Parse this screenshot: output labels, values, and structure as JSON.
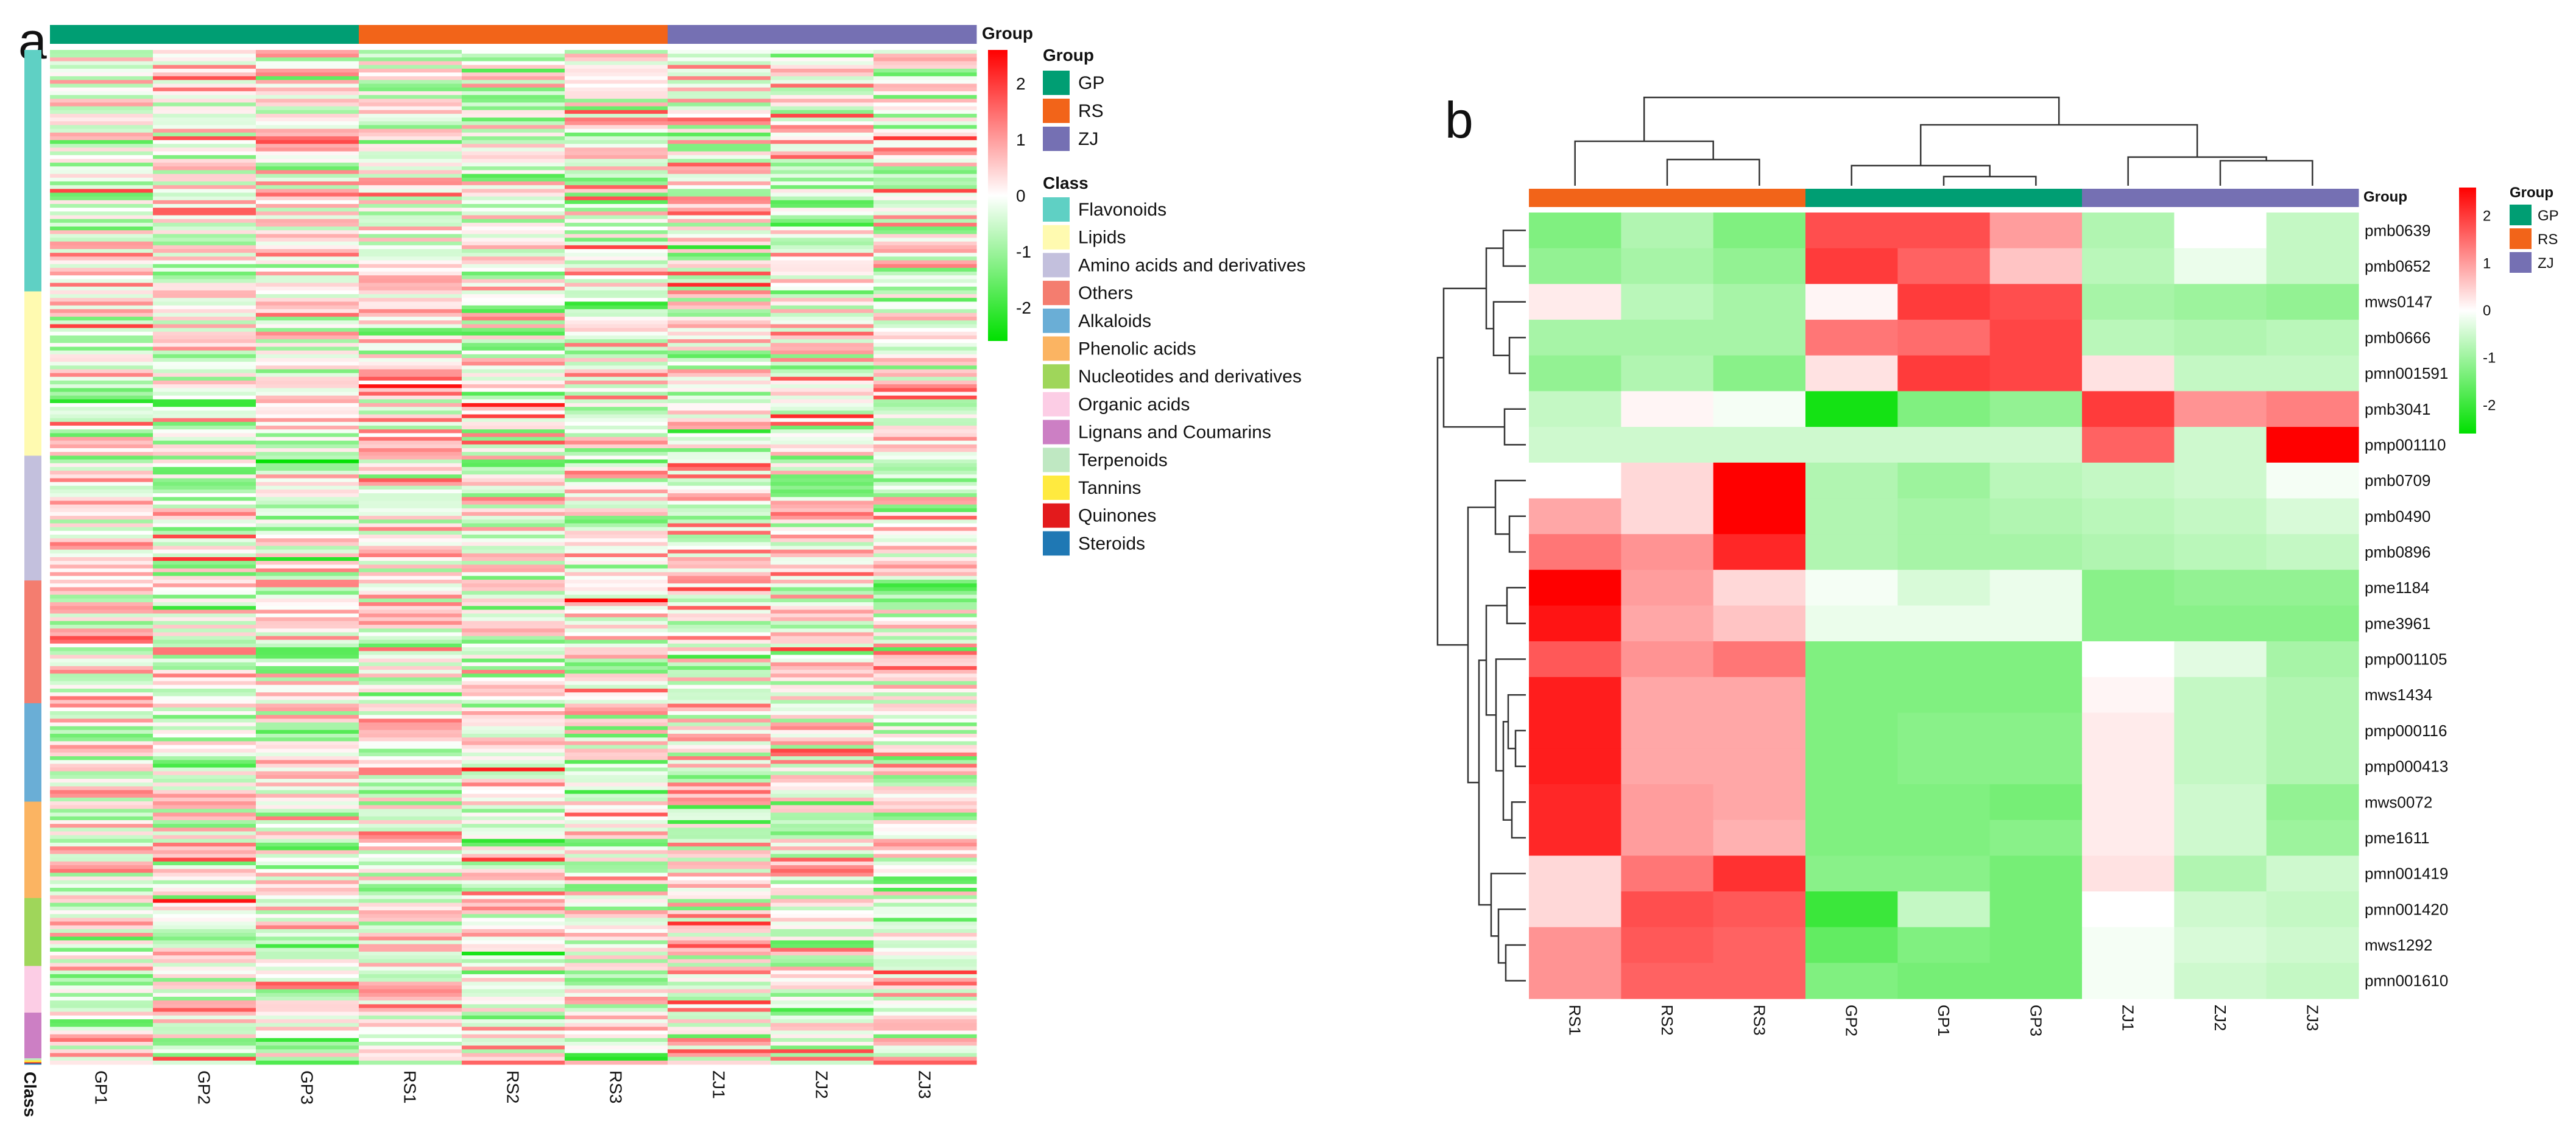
{
  "chart_data": [
    {
      "panel": "a",
      "type": "heatmap",
      "columns": [
        "GP1",
        "GP2",
        "GP3",
        "RS1",
        "RS2",
        "RS3",
        "ZJ1",
        "ZJ2",
        "ZJ3"
      ],
      "column_groups": [
        "GP",
        "GP",
        "GP",
        "RS",
        "RS",
        "RS",
        "ZJ",
        "ZJ",
        "ZJ"
      ],
      "group_legend": {
        "title": "Group",
        "items": [
          {
            "label": "GP",
            "color": "#009e73"
          },
          {
            "label": "RS",
            "color": "#f26419"
          },
          {
            "label": "ZJ",
            "color": "#7570b3"
          }
        ]
      },
      "class_legend": {
        "title": "Class",
        "items": [
          {
            "label": "Flavonoids",
            "color": "#5fd0c4",
            "share": 0.238
          },
          {
            "label": "Lipids",
            "color": "#fffab0",
            "share": 0.162
          },
          {
            "label": "Amino acids and derivatives",
            "color": "#c3c0dd",
            "share": 0.123
          },
          {
            "label": "Others",
            "color": "#f47d6f",
            "share": 0.121
          },
          {
            "label": "Alkaloids",
            "color": "#6aaed6",
            "share": 0.097
          },
          {
            "label": "Phenolic acids",
            "color": "#fbb462",
            "share": 0.095
          },
          {
            "label": "Nucleotides and derivatives",
            "color": "#9fd65a",
            "share": 0.067
          },
          {
            "label": "Organic acids",
            "color": "#fccde5",
            "share": 0.046
          },
          {
            "label": "Lignans and Coumarins",
            "color": "#cc7fc4",
            "share": 0.045
          },
          {
            "label": "Terpenoids",
            "color": "#bfe8c2",
            "share": 0.002
          },
          {
            "label": "Tannins",
            "color": "#ffea3f",
            "share": 0.002
          },
          {
            "label": "Quinones",
            "color": "#e31a1c",
            "share": 0.001
          },
          {
            "label": "Steroids",
            "color": "#1f78b4",
            "share": 0.001
          }
        ]
      },
      "scale": {
        "ticks": [
          2,
          1,
          0,
          -1,
          -2
        ],
        "range": [
          -2.6,
          2.6
        ],
        "colors": [
          "#00e000",
          "#ffffff",
          "#ff0000"
        ]
      },
      "row_axis_label": "Class",
      "group_bar_label": "Group",
      "rows_shown": "approximately 270 metabolites (individual values not legible)"
    },
    {
      "panel": "b",
      "type": "heatmap",
      "columns": [
        "RS1",
        "RS2",
        "RS3",
        "GP2",
        "GP1",
        "GP3",
        "ZJ1",
        "ZJ2",
        "ZJ3"
      ],
      "column_groups": [
        "RS",
        "RS",
        "RS",
        "GP",
        "GP",
        "GP",
        "ZJ",
        "ZJ",
        "ZJ"
      ],
      "rows": [
        "pmb0639",
        "pmb0652",
        "mws0147",
        "pmb0666",
        "pmn001591",
        "pmb3041",
        "pmp001110",
        "pmb0709",
        "pmb0490",
        "pmb0896",
        "pme1184",
        "pme3961",
        "pmp001105",
        "mws1434",
        "pmp000116",
        "pmp000413",
        "mws0072",
        "pme1611",
        "pmn001419",
        "pmn001420",
        "mws1292",
        "pmn001610"
      ],
      "values": [
        [
          -1.3,
          -0.8,
          -1.3,
          1.8,
          1.8,
          1.0,
          -0.8,
          0.0,
          -0.6
        ],
        [
          -1.1,
          -0.9,
          -1.1,
          2.0,
          1.6,
          0.6,
          -0.7,
          -0.2,
          -0.6
        ],
        [
          0.2,
          -0.7,
          -0.9,
          0.1,
          2.0,
          1.8,
          -0.9,
          -1.0,
          -1.1
        ],
        [
          -0.9,
          -0.9,
          -0.9,
          1.4,
          1.5,
          1.9,
          -0.7,
          -0.8,
          -0.7
        ],
        [
          -1.1,
          -0.8,
          -1.2,
          0.3,
          2.0,
          1.9,
          0.3,
          -0.6,
          -0.6
        ],
        [
          -0.6,
          0.1,
          -0.1,
          -2.4,
          -1.3,
          -1.1,
          2.0,
          1.1,
          1.3
        ],
        [
          -0.5,
          -0.5,
          -0.5,
          -0.5,
          -0.5,
          -0.5,
          1.6,
          -0.5,
          2.6
        ],
        [
          0.0,
          0.4,
          2.6,
          -0.8,
          -1.0,
          -0.7,
          -0.6,
          -0.5,
          -0.1
        ],
        [
          0.9,
          0.4,
          2.6,
          -0.8,
          -0.9,
          -0.8,
          -0.7,
          -0.6,
          -0.4
        ],
        [
          1.4,
          1.1,
          2.2,
          -0.8,
          -0.9,
          -0.9,
          -0.8,
          -0.7,
          -0.6
        ],
        [
          2.6,
          1.0,
          0.4,
          -0.1,
          -0.4,
          -0.2,
          -1.2,
          -1.1,
          -1.1
        ],
        [
          2.4,
          0.9,
          0.6,
          -0.2,
          -0.2,
          -0.2,
          -1.2,
          -1.2,
          -1.2
        ],
        [
          1.7,
          1.1,
          1.4,
          -1.3,
          -1.3,
          -1.3,
          0.0,
          -0.3,
          -0.9
        ],
        [
          2.3,
          0.9,
          0.9,
          -1.3,
          -1.3,
          -1.3,
          0.1,
          -0.6,
          -0.8
        ],
        [
          2.3,
          0.9,
          0.9,
          -1.3,
          -1.2,
          -1.2,
          0.2,
          -0.6,
          -0.8
        ],
        [
          2.3,
          0.9,
          0.9,
          -1.3,
          -1.2,
          -1.2,
          0.2,
          -0.6,
          -0.8
        ],
        [
          2.2,
          1.0,
          0.9,
          -1.3,
          -1.3,
          -1.4,
          0.2,
          -0.5,
          -1.1
        ],
        [
          2.2,
          1.0,
          0.8,
          -1.3,
          -1.3,
          -1.2,
          0.2,
          -0.5,
          -1.0
        ],
        [
          0.4,
          1.4,
          2.1,
          -1.2,
          -1.2,
          -1.4,
          0.3,
          -0.8,
          -0.5
        ],
        [
          0.4,
          1.8,
          1.7,
          -2.0,
          -0.6,
          -1.4,
          0.0,
          -0.5,
          -0.6
        ],
        [
          1.1,
          1.7,
          1.6,
          -1.6,
          -1.3,
          -1.4,
          -0.1,
          -0.4,
          -0.5
        ],
        [
          1.1,
          1.6,
          1.6,
          -1.3,
          -1.4,
          -1.4,
          -0.1,
          -0.5,
          -0.6
        ]
      ],
      "group_legend": {
        "title": "Group",
        "items": [
          {
            "label": "GP",
            "color": "#009e73"
          },
          {
            "label": "RS",
            "color": "#f26419"
          },
          {
            "label": "ZJ",
            "color": "#7570b3"
          }
        ]
      },
      "scale": {
        "ticks": [
          2,
          1,
          0,
          -1,
          -2
        ],
        "range": [
          -2.6,
          2.6
        ],
        "colors": [
          "#00e000",
          "#ffffff",
          "#ff0000"
        ]
      },
      "group_bar_label": "Group",
      "dendrograms": {
        "columns": true,
        "rows": true
      }
    }
  ],
  "figure": {
    "panel_a_letter": "a",
    "panel_b_letter": "b"
  }
}
